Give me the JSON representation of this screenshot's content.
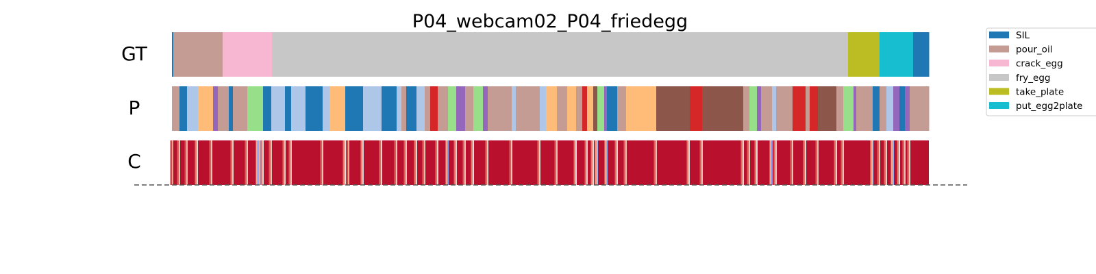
{
  "chart_data": {
    "type": "segmentation",
    "title": "P04_webcam02_P04_friedegg",
    "rows": [
      "GT",
      "P",
      "C"
    ],
    "legend": {
      "placement": "right, clipped at edge",
      "entries": [
        "SIL",
        "pour_oil",
        "crack_egg",
        "fry_egg",
        "take_plate",
        "put_egg2plate"
      ]
    },
    "colors": {
      "SIL": "#1f77b4",
      "pour_oil": "#c49c94",
      "crack_egg": "#f7b6d2",
      "fry_egg": "#c7c7c7",
      "take_plate": "#bcbd22",
      "put_egg2plate": "#17becf",
      "unlisted_1": "#aec7e8",
      "unlisted_2": "#ffbb78",
      "unlisted_3": "#9467bd",
      "unlisted_4": "#98df8a",
      "unlisted_5": "#d62728",
      "unlisted_6": "#8c564b"
    },
    "timeline_length": 1105,
    "gt_segments": [
      {
        "label": "SIL",
        "start": 0,
        "end": 2
      },
      {
        "label": "pour_oil",
        "start": 2,
        "end": 74
      },
      {
        "label": "crack_egg",
        "start": 74,
        "end": 146
      },
      {
        "label": "fry_egg",
        "start": 146,
        "end": 987
      },
      {
        "label": "take_plate",
        "start": 987,
        "end": 1033
      },
      {
        "label": "put_egg2plate",
        "start": 1033,
        "end": 1082
      },
      {
        "label": "SIL",
        "start": 1082,
        "end": 1105
      }
    ],
    "pred_segments": [
      [
        "pour_oil",
        0,
        11
      ],
      [
        "SIL",
        11,
        22
      ],
      [
        "unlisted_1",
        22,
        38
      ],
      [
        "unlisted_2",
        38,
        60
      ],
      [
        "unlisted_3",
        60,
        67
      ],
      [
        "pour_oil",
        67,
        83
      ],
      [
        "SIL",
        83,
        89
      ],
      [
        "pour_oil",
        89,
        110
      ],
      [
        "unlisted_4",
        110,
        133
      ],
      [
        "SIL",
        133,
        145
      ],
      [
        "unlisted_1",
        145,
        165
      ],
      [
        "SIL",
        165,
        174
      ],
      [
        "unlisted_1",
        174,
        195
      ],
      [
        "SIL",
        195,
        220
      ],
      [
        "unlisted_1",
        220,
        230
      ],
      [
        "unlisted_2",
        230,
        253
      ],
      [
        "SIL",
        253,
        279
      ],
      [
        "unlisted_1",
        279,
        306
      ],
      [
        "SIL",
        306,
        328
      ],
      [
        "unlisted_1",
        328,
        335
      ],
      [
        "pour_oil",
        335,
        342
      ],
      [
        "SIL",
        342,
        357
      ],
      [
        "unlisted_1",
        357,
        369
      ],
      [
        "pour_oil",
        369,
        377
      ],
      [
        "unlisted_5",
        377,
        388
      ],
      [
        "pour_oil",
        388,
        403
      ],
      [
        "unlisted_4",
        403,
        415
      ],
      [
        "unlisted_3",
        415,
        428
      ],
      [
        "pour_oil",
        428,
        440
      ],
      [
        "unlisted_4",
        440,
        454
      ],
      [
        "unlisted_3",
        454,
        461
      ],
      [
        "pour_oil",
        461,
        496
      ],
      [
        "unlisted_1",
        496,
        502
      ],
      [
        "pour_oil",
        502,
        537
      ],
      [
        "unlisted_1",
        537,
        546
      ],
      [
        "unlisted_2",
        546,
        562
      ],
      [
        "pour_oil",
        562,
        577
      ],
      [
        "unlisted_2",
        577,
        590
      ],
      [
        "pour_oil",
        590,
        599
      ],
      [
        "unlisted_5",
        599,
        606
      ],
      [
        "unlisted_2",
        606,
        615
      ],
      [
        "unlisted_6",
        615,
        621
      ],
      [
        "unlisted_4",
        621,
        631
      ],
      [
        "unlisted_3",
        631,
        635
      ],
      [
        "SIL",
        635,
        650
      ],
      [
        "pour_oil",
        650,
        663
      ],
      [
        "unlisted_2",
        663,
        707
      ],
      [
        "unlisted_6",
        707,
        756
      ],
      [
        "unlisted_5",
        756,
        774
      ],
      [
        "unlisted_6",
        774,
        834
      ],
      [
        "pour_oil",
        834,
        843
      ],
      [
        "unlisted_4",
        843,
        854
      ],
      [
        "unlisted_3",
        854,
        860
      ],
      [
        "pour_oil",
        860,
        876
      ],
      [
        "unlisted_1",
        876,
        882
      ],
      [
        "pour_oil",
        882,
        906
      ],
      [
        "unlisted_5",
        906,
        925
      ],
      [
        "pour_oil",
        925,
        931
      ],
      [
        "unlisted_5",
        931,
        943
      ],
      [
        "unlisted_6",
        943,
        970
      ],
      [
        "pour_oil",
        970,
        980
      ],
      [
        "unlisted_4",
        980,
        995
      ],
      [
        "unlisted_3",
        995,
        999
      ],
      [
        "pour_oil",
        999,
        1023
      ],
      [
        "SIL",
        1023,
        1033
      ],
      [
        "pour_oil",
        1033,
        1043
      ],
      [
        "unlisted_1",
        1043,
        1053
      ],
      [
        "unlisted_3",
        1053,
        1062
      ],
      [
        "SIL",
        1062,
        1070
      ],
      [
        "unlisted_3",
        1070,
        1077
      ],
      [
        "pour_oil",
        1077,
        1105
      ]
    ],
    "confidence": {
      "colormap": "coolwarm",
      "dominant_value": 0.98,
      "low_confidence_frames": [
        {
          "t": 1,
          "v": 0.7
        },
        {
          "t": 11,
          "v": 0.6
        },
        {
          "t": 22,
          "v": 0.65
        },
        {
          "t": 37,
          "v": 0.5
        },
        {
          "t": 58,
          "v": 0.6
        },
        {
          "t": 89,
          "v": 0.55
        },
        {
          "t": 110,
          "v": 0.6
        },
        {
          "t": 126,
          "v": 0.2
        },
        {
          "t": 130,
          "v": 0.15
        },
        {
          "t": 133,
          "v": 0.5
        },
        {
          "t": 145,
          "v": 0.6
        },
        {
          "t": 165,
          "v": 0.55
        },
        {
          "t": 174,
          "v": 0.6
        },
        {
          "t": 220,
          "v": 0.6
        },
        {
          "t": 253,
          "v": 0.5
        },
        {
          "t": 258,
          "v": 0.7
        },
        {
          "t": 279,
          "v": 0.45
        },
        {
          "t": 306,
          "v": 0.55
        },
        {
          "t": 328,
          "v": 0.6
        },
        {
          "t": 342,
          "v": 0.6
        },
        {
          "t": 357,
          "v": 0.5
        },
        {
          "t": 369,
          "v": 0.6
        },
        {
          "t": 388,
          "v": 0.55
        },
        {
          "t": 403,
          "v": 0.2
        },
        {
          "t": 415,
          "v": 0.55
        },
        {
          "t": 428,
          "v": 0.6
        },
        {
          "t": 440,
          "v": 0.5
        },
        {
          "t": 461,
          "v": 0.55
        },
        {
          "t": 496,
          "v": 0.6
        },
        {
          "t": 537,
          "v": 0.55
        },
        {
          "t": 562,
          "v": 0.6
        },
        {
          "t": 590,
          "v": 0.5
        },
        {
          "t": 606,
          "v": 0.55
        },
        {
          "t": 615,
          "v": 0.5
        },
        {
          "t": 621,
          "v": 0.3
        },
        {
          "t": 635,
          "v": 0.25
        },
        {
          "t": 650,
          "v": 0.55
        },
        {
          "t": 663,
          "v": 0.6
        },
        {
          "t": 707,
          "v": 0.6
        },
        {
          "t": 755,
          "v": 0.5
        },
        {
          "t": 774,
          "v": 0.6
        },
        {
          "t": 834,
          "v": 0.55
        },
        {
          "t": 843,
          "v": 0.6
        },
        {
          "t": 854,
          "v": 0.5
        },
        {
          "t": 876,
          "v": 0.2
        },
        {
          "t": 882,
          "v": 0.55
        },
        {
          "t": 906,
          "v": 0.6
        },
        {
          "t": 925,
          "v": 0.5
        },
        {
          "t": 943,
          "v": 0.6
        },
        {
          "t": 970,
          "v": 0.55
        },
        {
          "t": 980,
          "v": 0.6
        },
        {
          "t": 1023,
          "v": 0.35
        },
        {
          "t": 1033,
          "v": 0.6
        },
        {
          "t": 1043,
          "v": 0.55
        },
        {
          "t": 1053,
          "v": 0.25
        },
        {
          "t": 1062,
          "v": 0.5
        },
        {
          "t": 1070,
          "v": 0.6
        },
        {
          "t": 1077,
          "v": 0.55
        }
      ]
    },
    "baseline": "dashed"
  }
}
